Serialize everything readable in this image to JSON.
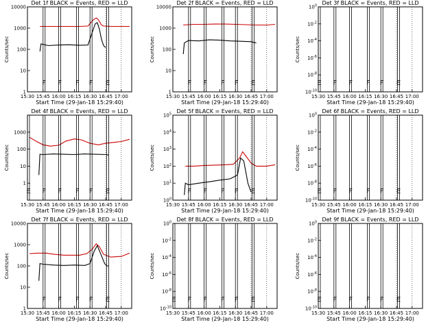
{
  "chart_data": [
    {
      "type": "line",
      "title": "Det 1f BLACK = Events, RED = LLD",
      "xlabel": "Start Time (29-Jan-18 15:29:40)",
      "ylabel": "Counts/sec",
      "scale": "log",
      "ylim": [
        1,
        10000
      ],
      "y_ticks": [
        "1",
        "10",
        "100",
        "1000",
        "10000"
      ],
      "x_ticks": [
        "15:30",
        "15:45",
        "16:00",
        "16:15",
        "16:30",
        "16:45",
        "17:00"
      ],
      "xlim": [
        "15:30",
        "17:10"
      ],
      "flags": [
        {
          "label": "F",
          "time": "15:45"
        },
        {
          "label": "F",
          "time": "16:00"
        },
        {
          "label": "F",
          "time": "16:17"
        },
        {
          "label": "F",
          "time": "16:30"
        },
        {
          "label": "E",
          "time": "16:46"
        }
      ],
      "series": [
        {
          "name": "LLD",
          "color": "#cc0000",
          "x": [
            "15:42",
            "15:50",
            "16:00",
            "16:10",
            "16:20",
            "16:28",
            "16:33",
            "16:36",
            "16:38",
            "16:41",
            "16:43",
            "16:50",
            "17:00",
            "17:08"
          ],
          "y": [
            1200,
            1200,
            1200,
            1200,
            1200,
            1250,
            2400,
            3000,
            2500,
            1400,
            1250,
            1200,
            1200,
            1200
          ]
        },
        {
          "name": "Events",
          "color": "#000000",
          "x": [
            "15:42",
            "15:43",
            "15:50",
            "16:00",
            "16:10",
            "16:20",
            "16:28",
            "16:32",
            "16:35",
            "16:37",
            "16:39",
            "16:41",
            "16:43",
            "16:45"
          ],
          "y": [
            80,
            180,
            150,
            160,
            165,
            155,
            160,
            600,
            1600,
            1800,
            900,
            300,
            150,
            120
          ]
        }
      ]
    },
    {
      "type": "line",
      "title": "Det 2f BLACK = Events, RED = LLD",
      "xlabel": "Start Time (29-Jan-18 15:29:40)",
      "ylabel": "Counts/sec",
      "scale": "log",
      "ylim": [
        1,
        10000
      ],
      "y_ticks": [
        "1",
        "10",
        "100",
        "1000",
        "10000"
      ],
      "x_ticks": [
        "15:30",
        "15:45",
        "16:00",
        "16:15",
        "16:30",
        "16:45",
        "17:00"
      ],
      "xlim": [
        "15:30",
        "17:10"
      ],
      "flags": [
        {
          "label": "F",
          "time": "15:45"
        },
        {
          "label": "F",
          "time": "16:00"
        },
        {
          "label": "F",
          "time": "16:17"
        },
        {
          "label": "F",
          "time": "16:30"
        },
        {
          "label": "E",
          "time": "16:46"
        }
      ],
      "series": [
        {
          "name": "LLD",
          "color": "#cc0000",
          "x": [
            "15:40",
            "15:50",
            "16:00",
            "16:10",
            "16:20",
            "16:30",
            "16:40",
            "16:50",
            "17:00",
            "17:08"
          ],
          "y": [
            1400,
            1500,
            1500,
            1550,
            1550,
            1500,
            1450,
            1400,
            1400,
            1500
          ]
        },
        {
          "name": "Events",
          "color": "#000000",
          "x": [
            "15:40",
            "15:41",
            "15:45",
            "15:55",
            "16:05",
            "16:15",
            "16:25",
            "16:35",
            "16:45",
            "16:50"
          ],
          "y": [
            60,
            200,
            260,
            250,
            280,
            270,
            250,
            240,
            230,
            200
          ]
        }
      ]
    },
    {
      "type": "line",
      "title": "Det 3f BLACK = Events, RED = LLD",
      "xlabel": "Start Time (29-Jan-18 15:29:40)",
      "ylabel": "Counts/sec",
      "scale": "log",
      "ylim": [
        1,
        1e-10
      ],
      "y_ticks": [
        "10^0",
        "10^-2",
        "10^-4",
        "10^-6",
        "10^-8",
        "10^-10"
      ],
      "x_ticks": [
        "15:30",
        "15:45",
        "16:00",
        "16:15",
        "16:30",
        "16:45",
        "17:00"
      ],
      "xlim": [
        "15:30",
        "17:10"
      ],
      "flags": [
        {
          "label": "E",
          "time": "15:30"
        },
        {
          "label": "F",
          "time": "15:45"
        },
        {
          "label": "F",
          "time": "16:00"
        },
        {
          "label": "F",
          "time": "16:17"
        },
        {
          "label": "F",
          "time": "16:30"
        },
        {
          "label": "E",
          "time": "16:46"
        }
      ],
      "series": []
    },
    {
      "type": "line",
      "title": "Det 4f BLACK = Events, RED = LLD",
      "xlabel": "Start Time (29-Jan-18 15:29:40)",
      "ylabel": "Counts/sec",
      "scale": "log",
      "ylim": [
        0.1,
        10000
      ],
      "y_ticks": [
        "1",
        "10",
        "100",
        "1000"
      ],
      "x_ticks": [
        "15:30",
        "15:45",
        "16:00",
        "16:15",
        "16:30",
        "16:45",
        "17:00"
      ],
      "xlim": [
        "15:30",
        "17:10"
      ],
      "flags": [
        {
          "label": "E",
          "time": "15:30"
        },
        {
          "label": "F",
          "time": "15:45"
        },
        {
          "label": "F",
          "time": "16:00"
        },
        {
          "label": "F",
          "time": "16:17"
        },
        {
          "label": "F",
          "time": "16:30"
        },
        {
          "label": "E",
          "time": "16:46"
        }
      ],
      "series": [
        {
          "name": "LLD",
          "color": "#cc0000",
          "x": [
            "15:32",
            "15:38",
            "15:45",
            "15:52",
            "16:00",
            "16:07",
            "16:15",
            "16:22",
            "16:30",
            "16:38",
            "16:45",
            "16:53",
            "17:00",
            "17:08"
          ],
          "y": [
            500,
            300,
            180,
            150,
            170,
            300,
            400,
            350,
            220,
            180,
            220,
            250,
            280,
            380
          ]
        },
        {
          "name": "Events",
          "color": "#000000",
          "x": [
            "15:41",
            "15:42",
            "15:45",
            "15:55",
            "16:05",
            "16:15",
            "16:25",
            "16:35",
            "16:45",
            "16:48"
          ],
          "y": [
            3,
            50,
            48,
            52,
            50,
            48,
            52,
            50,
            48,
            45
          ]
        }
      ]
    },
    {
      "type": "line",
      "title": "Det 5f BLACK = Events, RED = LLD",
      "xlabel": "Start Time (29-Jan-18 15:29:40)",
      "ylabel": "Counts/sec",
      "scale": "log",
      "ylim": [
        1,
        100000
      ],
      "y_ticks": [
        "10^0",
        "10^1",
        "10^2",
        "10^3",
        "10^4",
        "10^5"
      ],
      "x_ticks": [
        "15:30",
        "15:45",
        "16:00",
        "16:15",
        "16:30",
        "16:45",
        "17:00"
      ],
      "xlim": [
        "15:30",
        "17:10"
      ],
      "flags": [
        {
          "label": "F",
          "time": "15:45"
        },
        {
          "label": "F",
          "time": "16:00"
        },
        {
          "label": "F",
          "time": "16:17"
        },
        {
          "label": "F",
          "time": "16:30"
        },
        {
          "label": "E",
          "time": "16:46"
        }
      ],
      "series": [
        {
          "name": "LLD",
          "color": "#cc0000",
          "x": [
            "15:42",
            "15:50",
            "16:00",
            "16:10",
            "16:20",
            "16:28",
            "16:34",
            "16:37",
            "16:40",
            "16:45",
            "16:50",
            "17:00",
            "17:08"
          ],
          "y": [
            100,
            100,
            110,
            115,
            120,
            130,
            300,
            700,
            400,
            150,
            100,
            100,
            120
          ]
        },
        {
          "name": "Events",
          "color": "#000000",
          "x": [
            "15:41",
            "15:42",
            "15:45",
            "15:55",
            "16:05",
            "16:15",
            "16:25",
            "16:32",
            "16:35",
            "16:38",
            "16:42",
            "16:45"
          ],
          "y": [
            2,
            10,
            8,
            10,
            12,
            15,
            18,
            30,
            300,
            200,
            10,
            3
          ]
        }
      ]
    },
    {
      "type": "line",
      "title": "Det 6f BLACK = Events, RED = LLD",
      "xlabel": "Start Time (29-Jan-18 15:29:40)",
      "ylabel": "Counts/sec",
      "scale": "log",
      "ylim": [
        1,
        1e-10
      ],
      "y_ticks": [
        "10^0",
        "10^-2",
        "10^-4",
        "10^-6",
        "10^-8",
        "10^-10"
      ],
      "x_ticks": [
        "15:30",
        "15:45",
        "16:00",
        "16:15",
        "16:30",
        "16:45",
        "17:00"
      ],
      "xlim": [
        "15:30",
        "17:10"
      ],
      "flags": [
        {
          "label": "E",
          "time": "15:30"
        },
        {
          "label": "F",
          "time": "15:45"
        },
        {
          "label": "F",
          "time": "16:00"
        },
        {
          "label": "F",
          "time": "16:17"
        },
        {
          "label": "F",
          "time": "16:30"
        },
        {
          "label": "E",
          "time": "16:46"
        }
      ],
      "series": []
    },
    {
      "type": "line",
      "title": "Det 7f BLACK = Events, RED = LLD",
      "xlabel": "Start Time (29-Jan-18 15:29:40)",
      "ylabel": "Counts/sec",
      "scale": "log",
      "ylim": [
        1,
        10000
      ],
      "y_ticks": [
        "1",
        "10",
        "100",
        "1000",
        "10000"
      ],
      "x_ticks": [
        "15:30",
        "15:45",
        "16:00",
        "16:15",
        "16:30",
        "16:45",
        "17:00"
      ],
      "xlim": [
        "15:30",
        "17:10"
      ],
      "flags": [
        {
          "label": "F",
          "time": "15:45"
        },
        {
          "label": "F",
          "time": "16:00"
        },
        {
          "label": "F",
          "time": "16:17"
        },
        {
          "label": "F",
          "time": "16:30"
        },
        {
          "label": "E",
          "time": "16:46"
        }
      ],
      "series": [
        {
          "name": "LLD",
          "color": "#cc0000",
          "x": [
            "15:32",
            "15:40",
            "15:48",
            "15:56",
            "16:05",
            "16:12",
            "16:20",
            "16:27",
            "16:32",
            "16:36",
            "16:39",
            "16:43",
            "16:50",
            "17:00",
            "17:08"
          ],
          "y": [
            380,
            400,
            400,
            350,
            320,
            320,
            320,
            380,
            600,
            1100,
            800,
            350,
            260,
            280,
            400
          ]
        },
        {
          "name": "Events",
          "color": "#000000",
          "x": [
            "15:41",
            "15:42",
            "15:45",
            "15:55",
            "16:05",
            "16:15",
            "16:25",
            "16:30",
            "16:34",
            "16:37",
            "16:40",
            "16:44",
            "16:46",
            "16:48"
          ],
          "y": [
            20,
            130,
            120,
            110,
            105,
            110,
            105,
            130,
            500,
            900,
            400,
            130,
            100,
            100
          ]
        }
      ]
    },
    {
      "type": "line",
      "title": "Det 8f BLACK = Events, RED = LLD",
      "xlabel": "Start Time (29-Jan-18 15:29:40)",
      "ylabel": "Counts/sec",
      "scale": "log",
      "ylim": [
        1,
        1e-10
      ],
      "y_ticks": [
        "10^0",
        "10^-2",
        "10^-4",
        "10^-6",
        "10^-8",
        "10^-10"
      ],
      "x_ticks": [
        "15:30",
        "15:45",
        "16:00",
        "16:15",
        "16:30",
        "16:45",
        "17:00"
      ],
      "xlim": [
        "15:30",
        "17:10"
      ],
      "flags": [
        {
          "label": "E",
          "time": "15:30"
        },
        {
          "label": "F",
          "time": "15:45"
        },
        {
          "label": "F",
          "time": "16:00"
        },
        {
          "label": "F",
          "time": "16:17"
        },
        {
          "label": "F",
          "time": "16:30"
        },
        {
          "label": "E",
          "time": "16:46"
        }
      ],
      "series": []
    },
    {
      "type": "line",
      "title": "Det 9f BLACK = Events, RED = LLD",
      "xlabel": "Start Time (29-Jan-18 15:29:40)",
      "ylabel": "Counts/sec",
      "scale": "log",
      "ylim": [
        1,
        1e-10
      ],
      "y_ticks": [
        "10^0",
        "10^-2",
        "10^-4",
        "10^-6",
        "10^-8",
        "10^-10"
      ],
      "x_ticks": [
        "15:30",
        "15:45",
        "16:00",
        "16:15",
        "16:30",
        "16:45",
        "17:00"
      ],
      "xlim": [
        "15:30",
        "17:10"
      ],
      "flags": [
        {
          "label": "E",
          "time": "15:30"
        },
        {
          "label": "F",
          "time": "15:45"
        },
        {
          "label": "F",
          "time": "16:00"
        },
        {
          "label": "F",
          "time": "16:17"
        },
        {
          "label": "F",
          "time": "16:30"
        },
        {
          "label": "E",
          "time": "16:46"
        }
      ],
      "series": []
    }
  ]
}
